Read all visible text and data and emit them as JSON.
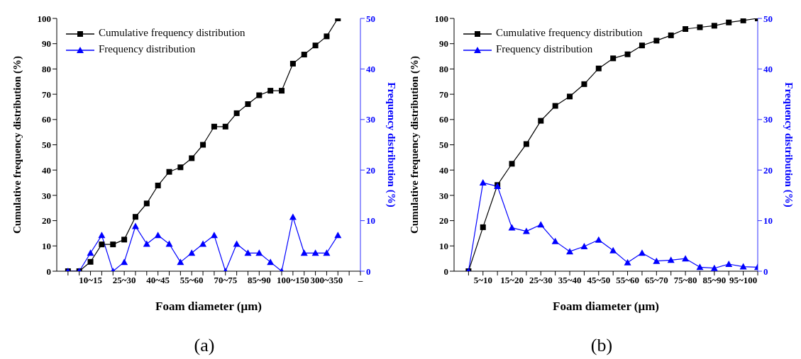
{
  "chart_data": [
    {
      "type": "line",
      "xlabel": "Foam diameter (μm)",
      "ylabel": "Cumulative frequency distribution (%)",
      "y2label": "Frequency distribution (%)",
      "categories": [
        null,
        null,
        "10~15",
        null,
        null,
        "25~30",
        null,
        null,
        "40~45",
        null,
        null,
        "55~60",
        null,
        null,
        "70~75",
        null,
        null,
        "85~90",
        null,
        null,
        "100~150",
        null,
        null,
        "300~350",
        null,
        null,
        "–"
      ],
      "series": [
        {
          "name": "Cumulative frequency distribution",
          "color": "#000000",
          "marker": "square",
          "values": [
            0,
            0,
            3.7,
            10.6,
            10.6,
            12.5,
            21.5,
            26.8,
            33.9,
            39.3,
            41.1,
            44.7,
            50,
            57.2,
            57.2,
            62.5,
            66.1,
            69.6,
            71.4,
            71.4,
            82.1,
            85.7,
            89.3,
            92.9,
            100,
            null,
            null
          ]
        },
        {
          "name": "Frequency distribution",
          "color": "#0000ff",
          "marker": "triangle",
          "axis": "y2",
          "values": [
            0,
            0,
            3.6,
            7.1,
            0,
            1.8,
            8.9,
            5.4,
            7.1,
            5.4,
            1.8,
            3.6,
            5.4,
            7.1,
            0,
            5.4,
            3.6,
            3.6,
            1.8,
            0,
            10.7,
            3.6,
            3.6,
            3.6,
            7.1,
            null,
            null
          ]
        }
      ],
      "ylim": [
        0,
        100
      ],
      "yticks": [
        0,
        10,
        20,
        30,
        40,
        50,
        60,
        70,
        80,
        90,
        100
      ],
      "y2lim": [
        0,
        50
      ],
      "y2ticks": [
        0,
        10,
        20,
        30,
        40,
        50
      ],
      "grid": false,
      "legend": "top left",
      "line_style": "solid",
      "annotations": [
        "(a)"
      ]
    },
    {
      "type": "line",
      "xlabel": "Foam diameter (μm)",
      "ylabel": "Cumulative frequency distribution (%)",
      "y2label": "Frequency distribution (%)",
      "categories": [
        null,
        "5~10",
        null,
        "15~20",
        null,
        "25~30",
        null,
        "35~40",
        null,
        "45~50",
        null,
        "55~60",
        null,
        "65~70",
        null,
        "75~80",
        null,
        "85~90",
        null,
        "95~100",
        null
      ],
      "series": [
        {
          "name": "Cumulative frequency distribution",
          "color": "#000000",
          "marker": "square",
          "values": [
            0,
            17.4,
            34.1,
            42.5,
            50.3,
            59.5,
            65.4,
            69.1,
            74.0,
            80.2,
            84.2,
            85.8,
            89.3,
            91.2,
            93.3,
            95.8,
            96.5,
            97.1,
            98.4,
            99.2,
            100
          ]
        },
        {
          "name": "Frequency distribution",
          "color": "#0000ff",
          "marker": "triangle",
          "axis": "y2",
          "values": [
            0,
            17.5,
            16.8,
            8.6,
            7.9,
            9.2,
            5.9,
            3.9,
            4.9,
            6.2,
            4.1,
            1.7,
            3.6,
            2.0,
            2.2,
            2.5,
            0.8,
            0.6,
            1.4,
            0.9,
            0.8
          ]
        }
      ],
      "ylim": [
        0,
        100
      ],
      "yticks": [
        0,
        10,
        20,
        30,
        40,
        50,
        60,
        70,
        80,
        90,
        100
      ],
      "y2lim": [
        0,
        50
      ],
      "y2ticks": [
        0,
        10,
        20,
        30,
        40,
        50
      ],
      "grid": false,
      "legend": "top left",
      "line_style": "solid",
      "annotations": [
        "(b)"
      ]
    }
  ]
}
